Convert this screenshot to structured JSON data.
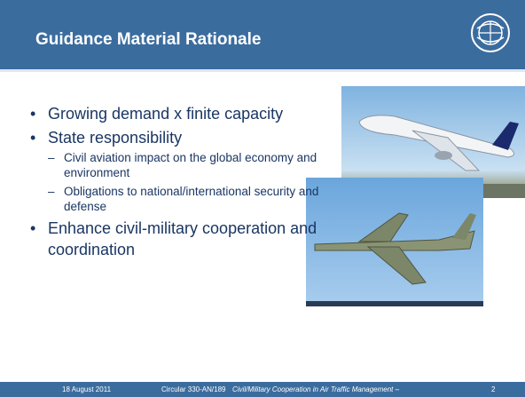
{
  "header": {
    "title": "Guidance Material Rationale"
  },
  "bullets": [
    {
      "text": "Growing demand x finite capacity"
    },
    {
      "text": "State responsibility",
      "sub": [
        "Civil aviation impact on the global economy and environment",
        "Obligations to national/international security and defense"
      ]
    },
    {
      "text": "Enhance civil-military cooperation and coordination"
    }
  ],
  "footer": {
    "date": "18 August 2011",
    "circular": "Circular 330-AN/189",
    "circular_title": "Civil/Military Cooperation in Air Traffic Management –",
    "page": "2"
  }
}
